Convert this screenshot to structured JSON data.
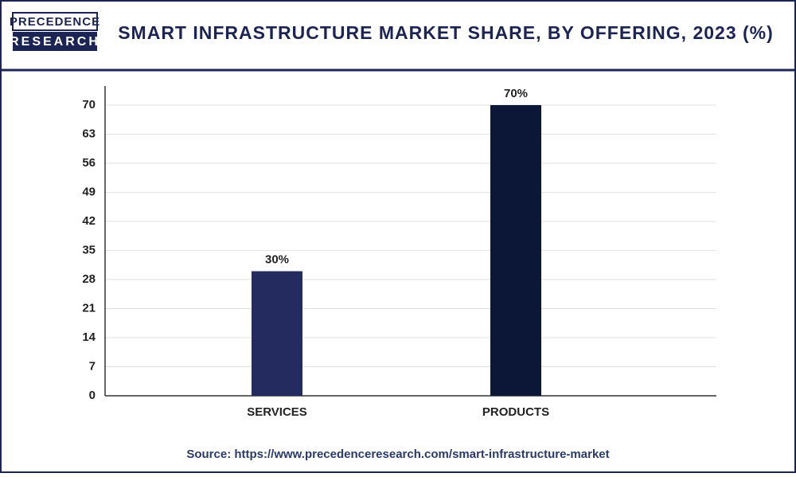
{
  "logo": {
    "line1": "PRECEDENCE",
    "line2": "RESEARCH"
  },
  "chart_data": {
    "type": "bar",
    "title": "SMART INFRASTRUCTURE MARKET SHARE, BY OFFERING, 2023 (%)",
    "categories": [
      "SERVICES",
      "PRODUCTS"
    ],
    "values": [
      30,
      70
    ],
    "value_labels": [
      "30%",
      "70%"
    ],
    "colors": [
      "#242b5f",
      "#0c1738"
    ],
    "ylim": [
      0,
      74.6
    ],
    "yticks": [
      0,
      7,
      14,
      21,
      28,
      35,
      42,
      49,
      56,
      63,
      70
    ],
    "grid": true,
    "source": "Source: https://www.precedenceresearch.com/smart-infrastructure-market"
  }
}
